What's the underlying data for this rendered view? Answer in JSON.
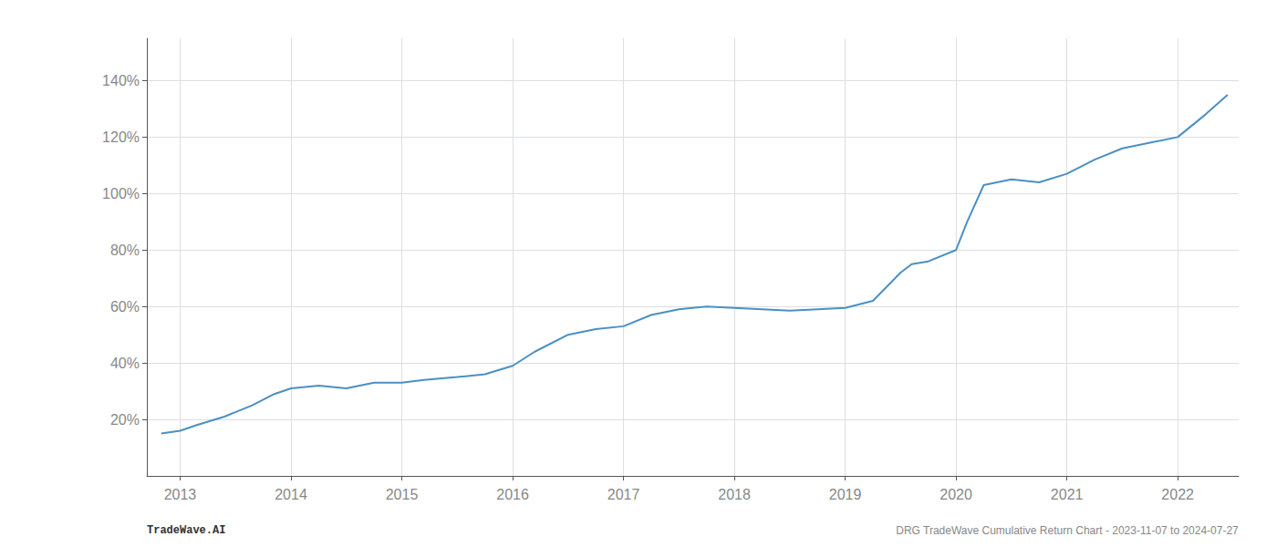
{
  "chart_data": {
    "type": "line",
    "annotations": [
      "TradeWave.AI",
      "DRG TradeWave Cumulative Return Chart - 2023-11-07 to 2024-07-27"
    ],
    "x": [
      2012.83,
      2013.0,
      2013.15,
      2013.4,
      2013.65,
      2013.85,
      2014.0,
      2014.25,
      2014.5,
      2014.75,
      2015.0,
      2015.2,
      2015.5,
      2015.75,
      2016.0,
      2016.2,
      2016.5,
      2016.75,
      2017.0,
      2017.25,
      2017.5,
      2017.75,
      2018.0,
      2018.25,
      2018.5,
      2018.75,
      2019.0,
      2019.25,
      2019.5,
      2019.6,
      2019.75,
      2020.0,
      2020.1,
      2020.25,
      2020.5,
      2020.75,
      2021.0,
      2021.25,
      2021.5,
      2021.75,
      2022.0,
      2022.25,
      2022.45
    ],
    "values": [
      15,
      16,
      18,
      21,
      25,
      29,
      31,
      32,
      31,
      33,
      33,
      34,
      35,
      36,
      39,
      44,
      50,
      52,
      53,
      57,
      59,
      60,
      59.5,
      59,
      58.5,
      59,
      59.5,
      62,
      72,
      75,
      76,
      80,
      90,
      103,
      105,
      104,
      107,
      112,
      116,
      118,
      120,
      128,
      135
    ],
    "color": "#4a90c4",
    "xlim": [
      2012.7,
      2022.55
    ],
    "ylim": [
      0,
      155
    ],
    "xticks": [
      2013,
      2014,
      2015,
      2016,
      2017,
      2018,
      2019,
      2020,
      2021,
      2022
    ],
    "yticks": [
      {
        "value": 20,
        "label": "20%"
      },
      {
        "value": 40,
        "label": "40%"
      },
      {
        "value": 60,
        "label": "60%"
      },
      {
        "value": 80,
        "label": "80%"
      },
      {
        "value": 100,
        "label": "100%"
      },
      {
        "value": 120,
        "label": "120%"
      },
      {
        "value": 140,
        "label": "140%"
      }
    ],
    "grid": true
  }
}
